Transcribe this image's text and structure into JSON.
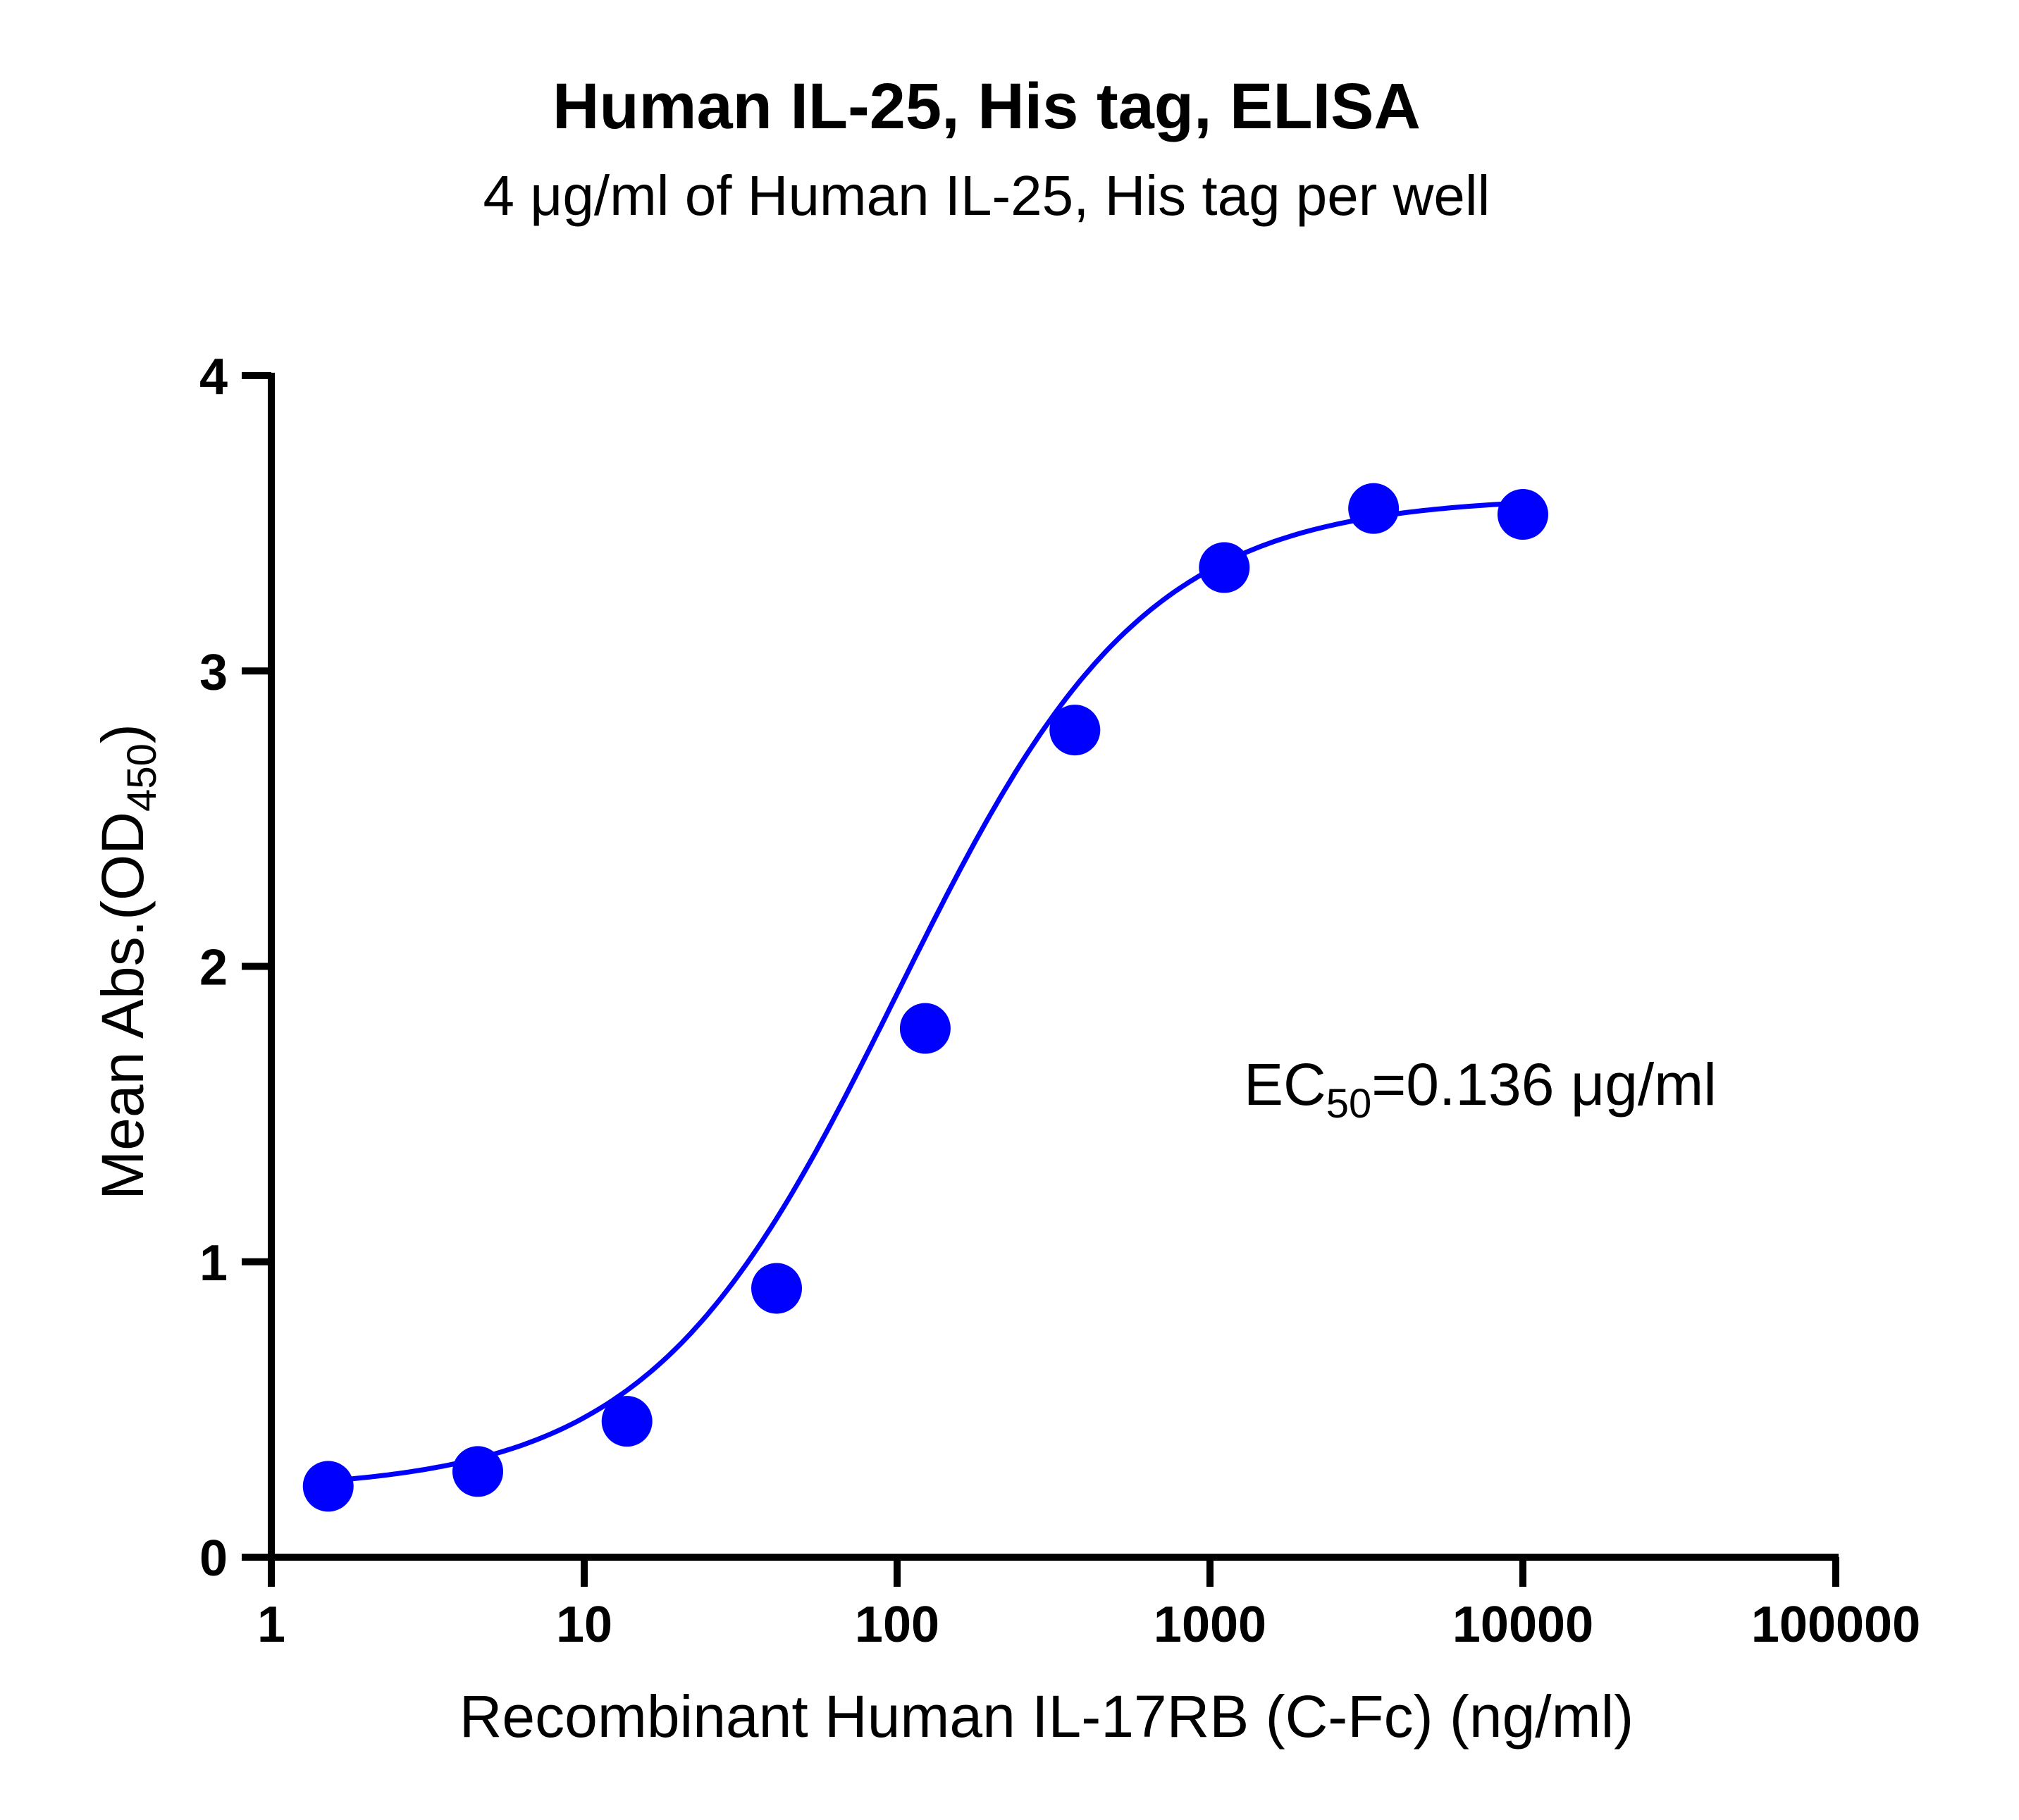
{
  "chart_data": {
    "type": "scatter",
    "title": "Human IL-25, His tag, ELISA",
    "subtitle": "4 μg/ml of Human IL-25, His tag per well",
    "xlabel": "Recombinant Human IL-17RB (C-Fc) (ng/ml)",
    "ylabel": {
      "main": "Mean Abs.(OD",
      "sub": "450",
      "close": ")"
    },
    "x_scale": "log",
    "xlim": [
      1,
      100000
    ],
    "ylim": [
      0,
      4
    ],
    "x_ticks": [
      "1",
      "10",
      "100",
      "1000",
      "10000",
      "100000"
    ],
    "y_ticks": [
      "0",
      "1",
      "2",
      "3",
      "4"
    ],
    "grid": false,
    "series": [
      {
        "x": [
          1.52,
          4.57,
          13.7,
          41.2,
          123,
          370,
          1111,
          3333,
          10000
        ],
        "y": [
          0.24,
          0.29,
          0.46,
          0.91,
          1.79,
          2.8,
          3.35,
          3.55,
          3.53
        ],
        "color": "#0000ff",
        "fit": "4PL"
      }
    ],
    "annotation": {
      "prefix": "EC",
      "sub": "50",
      "suffix": "=0.136 μg/ml"
    }
  }
}
